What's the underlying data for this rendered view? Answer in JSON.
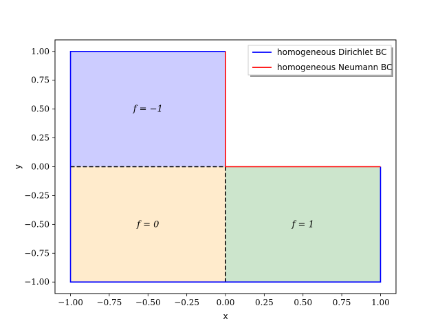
{
  "chart_data": {
    "type": "diagram",
    "xlabel": "x",
    "ylabel": "y",
    "xlim": [
      -1.1,
      1.1
    ],
    "ylim": [
      -1.1,
      1.1
    ],
    "x_ticks": [
      -1.0,
      -0.75,
      -0.5,
      -0.25,
      0.0,
      0.25,
      0.5,
      0.75,
      1.0
    ],
    "y_ticks": [
      -1.0,
      -0.75,
      -0.5,
      -0.25,
      0.0,
      0.25,
      0.5,
      0.75,
      1.0
    ],
    "x_tick_labels": [
      "−1.00",
      "−0.75",
      "−0.50",
      "−0.25",
      "0.00",
      "0.25",
      "0.50",
      "0.75",
      "1.00"
    ],
    "y_tick_labels": [
      "−1.00",
      "−0.75",
      "−0.50",
      "−0.25",
      "0.00",
      "0.25",
      "0.50",
      "0.75",
      "1.00"
    ],
    "regions": [
      {
        "id": "top-left",
        "x": [
          -1,
          0
        ],
        "y": [
          0,
          1
        ],
        "color": "#ccccff",
        "label": "f = −1",
        "label_at": [
          -0.5,
          0.5
        ]
      },
      {
        "id": "bottom-left",
        "x": [
          -1,
          0
        ],
        "y": [
          -1,
          0
        ],
        "color": "#ffebcc",
        "label": "f = 0",
        "label_at": [
          -0.5,
          -0.5
        ]
      },
      {
        "id": "bottom-right",
        "x": [
          0,
          1
        ],
        "y": [
          -1,
          0
        ],
        "color": "#cce5cc",
        "label": "f = 1",
        "label_at": [
          0.5,
          -0.5
        ]
      }
    ],
    "boundaries": [
      {
        "type": "dirichlet",
        "points": [
          [
            0,
            1
          ],
          [
            -1,
            1
          ],
          [
            -1,
            -1
          ],
          [
            1,
            -1
          ],
          [
            1,
            0
          ]
        ]
      },
      {
        "type": "neumann",
        "points": [
          [
            0,
            1
          ],
          [
            0,
            0
          ],
          [
            1,
            0
          ]
        ]
      }
    ],
    "interfaces": [
      {
        "points": [
          [
            -1,
            0
          ],
          [
            0,
            0
          ]
        ]
      },
      {
        "points": [
          [
            0,
            0
          ],
          [
            0,
            -1
          ]
        ]
      }
    ],
    "legend": {
      "placement": "top-right",
      "entries": [
        {
          "label": "homogeneous Dirichlet BC",
          "color": "#0000ff"
        },
        {
          "label": "homogeneous Neumann BC",
          "color": "#ff0000"
        }
      ]
    }
  }
}
